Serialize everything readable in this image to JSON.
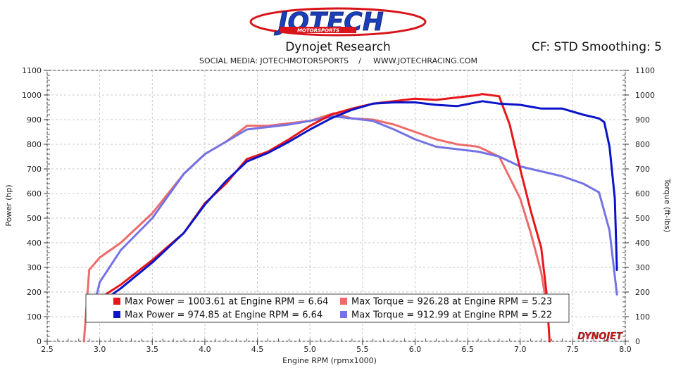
{
  "branding": {
    "logo_text": "JOTECH",
    "logo_subtext": "MOTORSPORTS",
    "watermark": "DYNOJET"
  },
  "header": {
    "title": "Dynojet Research",
    "correction": "CF: STD Smoothing: 5",
    "social": "SOCIAL MEDIA: JOTECHMOTORSPORTS",
    "separator": "/",
    "website": "WWW.JOTECHRACING.COM"
  },
  "chart_data": {
    "type": "line",
    "xlabel": "Engine RPM (rpmx1000)",
    "ylabel": "Power (hp)",
    "y2label": "Torque (ft-lbs)",
    "xlim": [
      2.5,
      8.0
    ],
    "ylim": [
      0,
      1100
    ],
    "y2lim": [
      0,
      1100
    ],
    "x_ticks": [
      "2.5",
      "3.0",
      "3.5",
      "4.0",
      "4.5",
      "5.0",
      "5.5",
      "6.0",
      "6.5",
      "7.0",
      "7.5",
      "8.0"
    ],
    "y_ticks": [
      "0",
      "100",
      "200",
      "300",
      "400",
      "500",
      "600",
      "700",
      "800",
      "900",
      "1000",
      "1100"
    ],
    "y2_ticks": [
      "0",
      "100",
      "200",
      "300",
      "400",
      "500",
      "600",
      "700",
      "800",
      "900",
      "1000",
      "1100"
    ],
    "grid": true,
    "legend_position": "bottom-center",
    "series": [
      {
        "legend": "Max Power = 1003.61 at Engine RPM = 6.64",
        "color": "#e8151a",
        "x": [
          3.0,
          3.2,
          3.5,
          3.8,
          4.0,
          4.2,
          4.4,
          4.6,
          4.8,
          5.0,
          5.2,
          5.4,
          5.6,
          5.8,
          6.0,
          6.2,
          6.4,
          6.6,
          6.64,
          6.8,
          6.9,
          7.0,
          7.1,
          7.2,
          7.25,
          7.28
        ],
        "y": [
          175,
          230,
          330,
          440,
          560,
          640,
          740,
          770,
          820,
          875,
          920,
          945,
          965,
          975,
          985,
          980,
          990,
          1000,
          1004,
          995,
          880,
          700,
          530,
          380,
          200,
          0
        ]
      },
      {
        "legend": "Max Power = 974.85 at Engine RPM = 6.64",
        "color": "#0a14c8",
        "x": [
          3.0,
          3.2,
          3.5,
          3.8,
          4.0,
          4.2,
          4.4,
          4.6,
          4.8,
          5.0,
          5.2,
          5.4,
          5.6,
          5.8,
          6.0,
          6.2,
          6.4,
          6.64,
          6.8,
          7.0,
          7.2,
          7.4,
          7.6,
          7.75,
          7.8,
          7.85,
          7.9,
          7.92
        ],
        "y": [
          155,
          215,
          320,
          440,
          555,
          650,
          730,
          765,
          810,
          860,
          905,
          940,
          965,
          970,
          970,
          960,
          955,
          975,
          965,
          960,
          945,
          945,
          920,
          905,
          890,
          790,
          580,
          290
        ]
      },
      {
        "legend": "Max Torque = 926.28 at Engine RPM = 5.23",
        "color": "#ee6b6b",
        "x": [
          2.85,
          2.9,
          3.0,
          3.2,
          3.5,
          3.8,
          4.0,
          4.2,
          4.4,
          4.6,
          4.8,
          5.0,
          5.23,
          5.4,
          5.6,
          5.8,
          6.0,
          6.2,
          6.4,
          6.6,
          6.8,
          7.0,
          7.1,
          7.2,
          7.25
        ],
        "y": [
          0,
          290,
          340,
          400,
          520,
          680,
          760,
          810,
          875,
          875,
          885,
          895,
          926,
          905,
          900,
          880,
          850,
          820,
          800,
          790,
          750,
          580,
          440,
          280,
          150
        ]
      },
      {
        "legend": "Max Torque = 912.99 at Engine RPM = 5.22",
        "color": "#7373e6",
        "x": [
          2.95,
          3.0,
          3.2,
          3.5,
          3.8,
          4.0,
          4.2,
          4.4,
          4.6,
          4.8,
          5.0,
          5.22,
          5.4,
          5.6,
          5.8,
          6.0,
          6.2,
          6.4,
          6.6,
          6.8,
          7.0,
          7.2,
          7.4,
          7.6,
          7.75,
          7.85,
          7.92
        ],
        "y": [
          150,
          240,
          370,
          500,
          680,
          760,
          810,
          860,
          870,
          880,
          895,
          913,
          905,
          895,
          860,
          820,
          790,
          780,
          770,
          750,
          710,
          690,
          670,
          640,
          605,
          450,
          190
        ]
      }
    ]
  }
}
